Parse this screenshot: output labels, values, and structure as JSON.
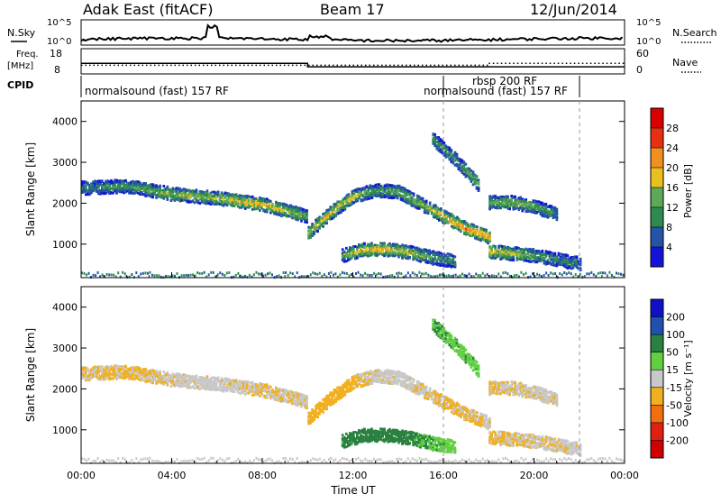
{
  "header": {
    "station": "Adak East (fitACF)",
    "beam": "Beam 17",
    "date": "12/Jun/2014"
  },
  "noise_panel": {
    "left_label": "N.Sky",
    "right_label": "N.Search",
    "left_ticks": [
      "10^5",
      "10^0"
    ],
    "right_ticks": [
      "10^5",
      "10^0"
    ]
  },
  "freq_panel": {
    "left_label_1": "Freq.",
    "left_label_2": "[MHz]",
    "left_ticks": [
      "18",
      "8"
    ],
    "right_label": "Nave",
    "right_ticks": [
      "60",
      "0"
    ]
  },
  "cpid": {
    "label": "CPID",
    "segments": [
      {
        "text": "normalsound (fast) 157 RF",
        "start_hour": 0.0
      },
      {
        "text": "rbsp 200 RF",
        "start_hour": 16.0
      },
      {
        "text": "normalsound (fast) 157 RF",
        "start_hour": 16.0
      }
    ]
  },
  "x_axis": {
    "label": "Time UT",
    "tick_labels": [
      "00:00",
      "04:00",
      "08:00",
      "12:00",
      "16:00",
      "20:00",
      "00:00"
    ]
  },
  "power_panel": {
    "ylabel": "Slant Range [km]",
    "cbar_label": "Power [dB]",
    "cbar_ticks": [
      "28",
      "24",
      "20",
      "16",
      "12",
      "8",
      "4"
    ]
  },
  "velocity_panel": {
    "ylabel": "Slant Range [km]",
    "cbar_label": "Velocity [m s⁻¹]",
    "cbar_ticks": [
      "200",
      "100",
      "50",
      "15",
      "-15",
      "-50",
      "-100",
      "-200"
    ]
  },
  "colors": {
    "power_scale": [
      "#1414d8",
      "#2553a8",
      "#2f8a52",
      "#5fa858",
      "#e8c020",
      "#f09020",
      "#e83010",
      "#d80000"
    ],
    "velocity_scale": [
      "#1010c8",
      "#2050b0",
      "#2a8040",
      "#60d040",
      "#c8c8c8",
      "#f0b020",
      "#f07010",
      "#e02010",
      "#d00000"
    ],
    "ground": "#c8c8c8"
  },
  "chart_data": {
    "type": "heatmap",
    "x_range_hours": [
      0,
      24
    ],
    "y_range_km": [
      180,
      4500
    ],
    "y_ticks_km": [
      1000,
      2000,
      3000,
      4000
    ],
    "frequency_mhz": [
      {
        "from_hour": 0.0,
        "to_hour": 10.0,
        "value": 12.0
      },
      {
        "from_hour": 10.0,
        "to_hour": 24.0,
        "value": 10.2
      }
    ],
    "nave": [
      {
        "from_hour": 0.0,
        "to_hour": 16.0,
        "value": 18
      },
      {
        "from_hour": 16.0,
        "to_hour": 18.0,
        "value": 18
      },
      {
        "from_hour": 18.0,
        "to_hour": 24.0,
        "value": 24
      }
    ],
    "scatter_bands": [
      {
        "name": "band-upper-early",
        "hours": [
          0.0,
          2.0,
          4.0,
          6.0,
          8.0,
          10.0
        ],
        "range_km": [
          2400,
          2450,
          2250,
          2150,
          2000,
          1700
        ],
        "power_db": [
          10,
          12,
          16,
          17,
          21,
          14
        ],
        "velocity": [
          -15,
          -20,
          -10,
          -5,
          -15,
          -10
        ]
      },
      {
        "name": "band-arc-midday",
        "hours": [
          10.0,
          11.0,
          12.0,
          13.0,
          14.0,
          15.0,
          16.0,
          17.0,
          18.0
        ],
        "range_km": [
          1300,
          1800,
          2200,
          2350,
          2300,
          2000,
          1700,
          1400,
          1200
        ],
        "power_db": [
          18,
          21,
          18,
          12,
          14,
          16,
          20,
          24,
          22
        ],
        "velocity": [
          -30,
          -40,
          -20,
          -10,
          -5,
          -10,
          -20,
          -20,
          -10
        ]
      },
      {
        "name": "band-low-midday",
        "hours": [
          11.5,
          12.5,
          13.5,
          14.5,
          15.5,
          16.5
        ],
        "range_km": [
          750,
          900,
          900,
          820,
          700,
          600
        ],
        "power_db": [
          14,
          20,
          21,
          18,
          12,
          10
        ],
        "velocity": [
          40,
          45,
          50,
          40,
          30,
          20
        ]
      },
      {
        "name": "band-afternoon-high",
        "hours": [
          15.5,
          16.5,
          17.5
        ],
        "range_km": [
          3600,
          3100,
          2500
        ],
        "power_db": [
          12,
          12,
          14
        ],
        "velocity": [
          30,
          25,
          25
        ]
      },
      {
        "name": "band-evening",
        "hours": [
          18.0,
          19.0,
          20.0,
          21.0
        ],
        "range_km": [
          2050,
          2050,
          1950,
          1750
        ],
        "power_db": [
          14,
          16,
          14,
          10
        ],
        "velocity": [
          -15,
          -10,
          -10,
          -10
        ]
      },
      {
        "name": "band-evening-low",
        "hours": [
          18.0,
          19.0,
          20.0,
          21.0,
          22.0
        ],
        "range_km": [
          850,
          800,
          750,
          650,
          550
        ],
        "power_db": [
          20,
          18,
          14,
          10,
          8
        ],
        "velocity": [
          -20,
          -15,
          -10,
          -10,
          -5
        ]
      }
    ]
  }
}
